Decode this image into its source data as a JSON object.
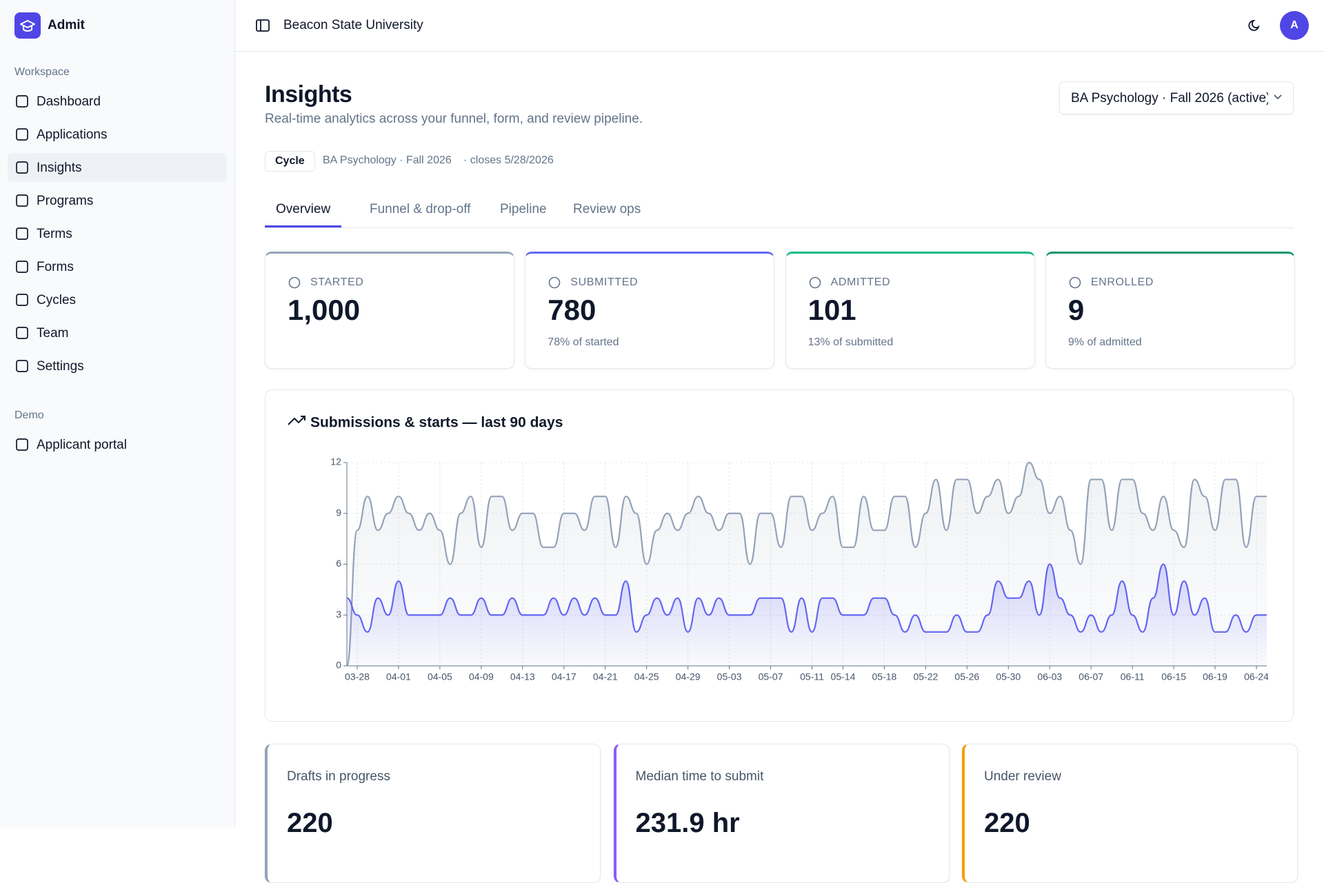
{
  "sidebar": {
    "brand": "Admit",
    "sections": [
      {
        "label": "Workspace",
        "items": [
          "Dashboard",
          "Applications",
          "Insights",
          "Programs",
          "Terms",
          "Forms",
          "Cycles",
          "Team",
          "Settings"
        ]
      },
      {
        "label": "Demo",
        "items": [
          "Applicant portal"
        ]
      }
    ],
    "active": "Insights"
  },
  "topbar": {
    "org": "Beacon State University",
    "avatar": "A"
  },
  "header": {
    "title": "Insights",
    "subtitle": "Real-time analytics across your funnel, form, and review pipeline.",
    "program_select": "BA Psychology · Fall 2026 (active)"
  },
  "cycle": {
    "badge": "Cycle",
    "name": "BA Psychology · Fall 2026",
    "closes": "· closes 5/28/2026"
  },
  "tabs": [
    "Overview",
    "Funnel & drop-off",
    "Pipeline",
    "Review ops"
  ],
  "stats": [
    {
      "label": "STARTED",
      "value": "1,000",
      "color": "#94a3b8"
    },
    {
      "label": "SUBMITTED",
      "value": "780",
      "note": "78% of started",
      "color": "#6366f1"
    },
    {
      "label": "ADMITTED",
      "value": "101",
      "note": "13% of submitted",
      "color": "#10b981"
    },
    {
      "label": "ENROLLED",
      "value": "9",
      "note": "9% of admitted",
      "color": "#059669"
    }
  ],
  "chart_data": {
    "type": "line",
    "title": "Submissions & starts — last 90 days",
    "categories": [
      null,
      "03-28",
      null,
      null,
      null,
      "04-01",
      null,
      null,
      null,
      "04-05",
      null,
      null,
      null,
      "04-09",
      null,
      null,
      null,
      "04-13",
      null,
      null,
      null,
      "04-17",
      null,
      null,
      null,
      "04-21",
      null,
      null,
      null,
      "04-25",
      null,
      null,
      null,
      "04-29",
      null,
      null,
      null,
      "05-03",
      null,
      null,
      null,
      "05-07",
      null,
      null,
      null,
      "05-11",
      null,
      null,
      "05-14",
      null,
      null,
      null,
      "05-18",
      null,
      null,
      null,
      "05-22",
      null,
      null,
      null,
      "05-26",
      null,
      null,
      null,
      "05-30",
      null,
      null,
      null,
      "06-03",
      null,
      null,
      null,
      "06-07",
      null,
      null,
      null,
      "06-11",
      null,
      null,
      null,
      "06-15",
      null,
      null,
      null,
      "06-19",
      null,
      null,
      null,
      "06-24",
      null
    ],
    "series": [
      {
        "color": "#94a3b8",
        "values": [
          0,
          8,
          10,
          8,
          9,
          10,
          9,
          8,
          9,
          8,
          6,
          9,
          10,
          7,
          10,
          10,
          8,
          9,
          9,
          7,
          7,
          9,
          9,
          8,
          10,
          10,
          7,
          10,
          9,
          6,
          8,
          9,
          8,
          9,
          10,
          9,
          8,
          9,
          9,
          6,
          9,
          9,
          7,
          10,
          10,
          8,
          9,
          10,
          7,
          7,
          10,
          8,
          8,
          10,
          10,
          7,
          9,
          11,
          8,
          11,
          11,
          9,
          10,
          11,
          9,
          10,
          12,
          11,
          9,
          10,
          8,
          6,
          11,
          11,
          8,
          11,
          11,
          9,
          8,
          10,
          8,
          7,
          11,
          10,
          8,
          11,
          11,
          7,
          10,
          10
        ]
      },
      {
        "color": "#6366f1",
        "values": [
          4,
          3,
          2,
          4,
          3,
          5,
          3,
          3,
          3,
          3,
          4,
          3,
          3,
          4,
          3,
          3,
          4,
          3,
          3,
          3,
          4,
          3,
          4,
          3,
          4,
          3,
          3,
          5,
          2,
          3,
          4,
          3,
          4,
          2,
          4,
          3,
          4,
          3,
          3,
          3,
          4,
          4,
          4,
          2,
          4,
          2,
          4,
          4,
          3,
          3,
          3,
          4,
          4,
          3,
          2,
          3,
          2,
          2,
          2,
          3,
          2,
          2,
          3,
          5,
          4,
          4,
          5,
          3,
          6,
          4,
          3,
          2,
          3,
          2,
          3,
          5,
          3,
          2,
          4,
          6,
          3,
          5,
          3,
          4,
          2,
          2,
          3,
          2,
          3,
          3
        ]
      }
    ],
    "ylim": [
      0,
      12
    ],
    "yticks": [
      0,
      3,
      6,
      9,
      12
    ],
    "grid": true
  },
  "summary": [
    {
      "label": "Drafts in progress",
      "value": "220",
      "color": "#94a3b8"
    },
    {
      "label": "Median time to submit",
      "value": "231.9 hr",
      "color": "#8b5cf6"
    },
    {
      "label": "Under review",
      "value": "220",
      "color": "#f59e0b"
    }
  ]
}
